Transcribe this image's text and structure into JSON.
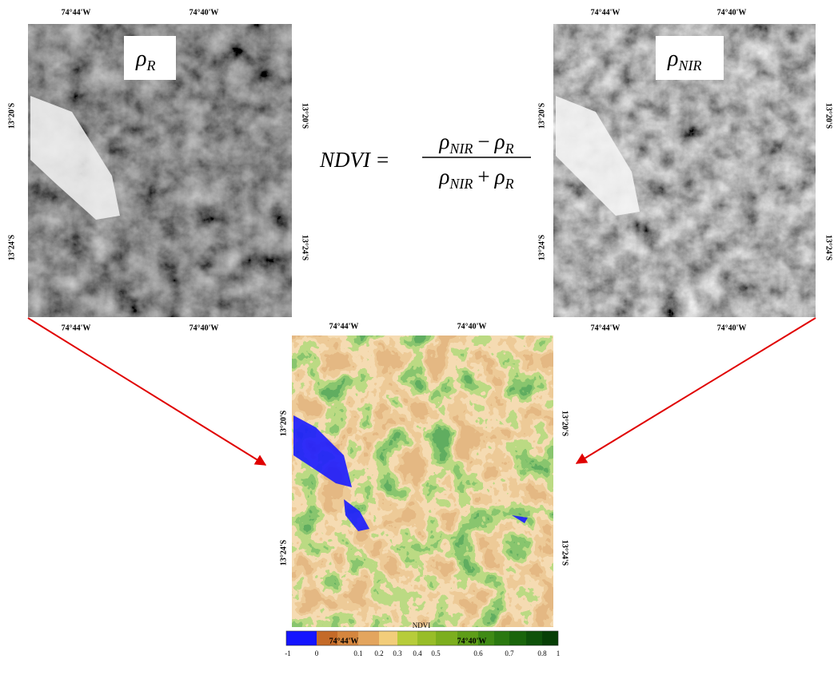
{
  "panels": [
    {
      "symbol": "ρ",
      "subscript": "R",
      "top": [
        "74°44'W",
        "74°40'W"
      ],
      "bottom": [
        "74°44'W",
        "74°40'W"
      ],
      "left": [
        "13°20'S",
        "13°24'S"
      ],
      "right": [
        "13°20'S",
        "13°24'S"
      ]
    },
    {
      "symbol": "ρ",
      "subscript": "NIR",
      "top": [
        "74°44'W",
        "74°40'W"
      ],
      "bottom": [
        "74°44'W",
        "74°40'W"
      ],
      "left": [
        "13°20'S",
        "13°24'S"
      ],
      "right": [
        "13°20'S",
        "13°24'S"
      ]
    },
    {
      "top": [
        "74°44'W",
        "74°40'W"
      ],
      "bottom": [
        "74°44'W",
        "74°40'W"
      ],
      "left": [
        "13°20'S",
        "13°24'S"
      ],
      "right": [
        "13°20'S",
        "13°24'S"
      ]
    }
  ],
  "formula": {
    "lhs": "NDVI",
    "equals": "=",
    "numerator": {
      "a": "ρ",
      "a_sub": "NIR",
      "op": "−",
      "b": "ρ",
      "b_sub": "R"
    },
    "denominator": {
      "a": "ρ",
      "a_sub": "NIR",
      "op": "+",
      "b": "ρ",
      "b_sub": "R"
    }
  },
  "legend": {
    "title": "NDVI",
    "ticks": [
      "-1",
      "0",
      "0.1",
      "0.2",
      "0.3",
      "0.4",
      "0.5",
      "0.6",
      "0.7",
      "0.8",
      "1"
    ]
  }
}
